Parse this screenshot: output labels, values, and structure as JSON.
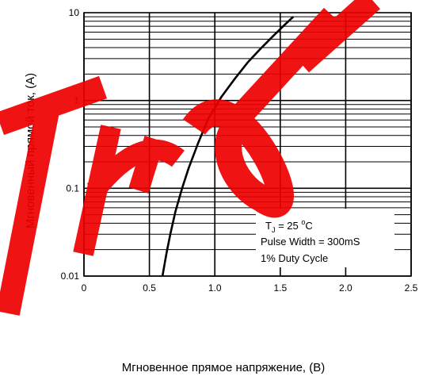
{
  "chart_data": {
    "type": "line",
    "xlabel": "Мгновенное прямое напряжение, (В)",
    "ylabel": "Мгновенный прямой ток, (А)",
    "xlim": [
      0,
      2.5
    ],
    "ylim": [
      0.01,
      10
    ],
    "yscale": "log",
    "x_ticks": [
      "0",
      "0.5",
      "1.0",
      "1.5",
      "2.0",
      "2.5"
    ],
    "y_ticks": [
      "0.01",
      "0.1",
      "1",
      "10"
    ],
    "grid": true,
    "series": [
      {
        "x": [
          0.6,
          0.63,
          0.66,
          0.7,
          0.75,
          0.8,
          0.87,
          0.95,
          1.05,
          1.15,
          1.25,
          1.35,
          1.45,
          1.53,
          1.6
        ],
        "y": [
          0.01,
          0.018,
          0.03,
          0.055,
          0.1,
          0.17,
          0.32,
          0.62,
          1.1,
          1.75,
          2.7,
          3.9,
          5.5,
          7.2,
          9.0
        ]
      }
    ],
    "annotation": {
      "tj_prefix": "T",
      "tj_sub": "J",
      "tj_value": " = 25 ",
      "tj_deg": "o",
      "tj_unit": "C",
      "pulse": "Pulse Width = 300mS",
      "duty": "1% Duty Cycle"
    }
  },
  "watermark": {
    "color": "#ee0000"
  }
}
